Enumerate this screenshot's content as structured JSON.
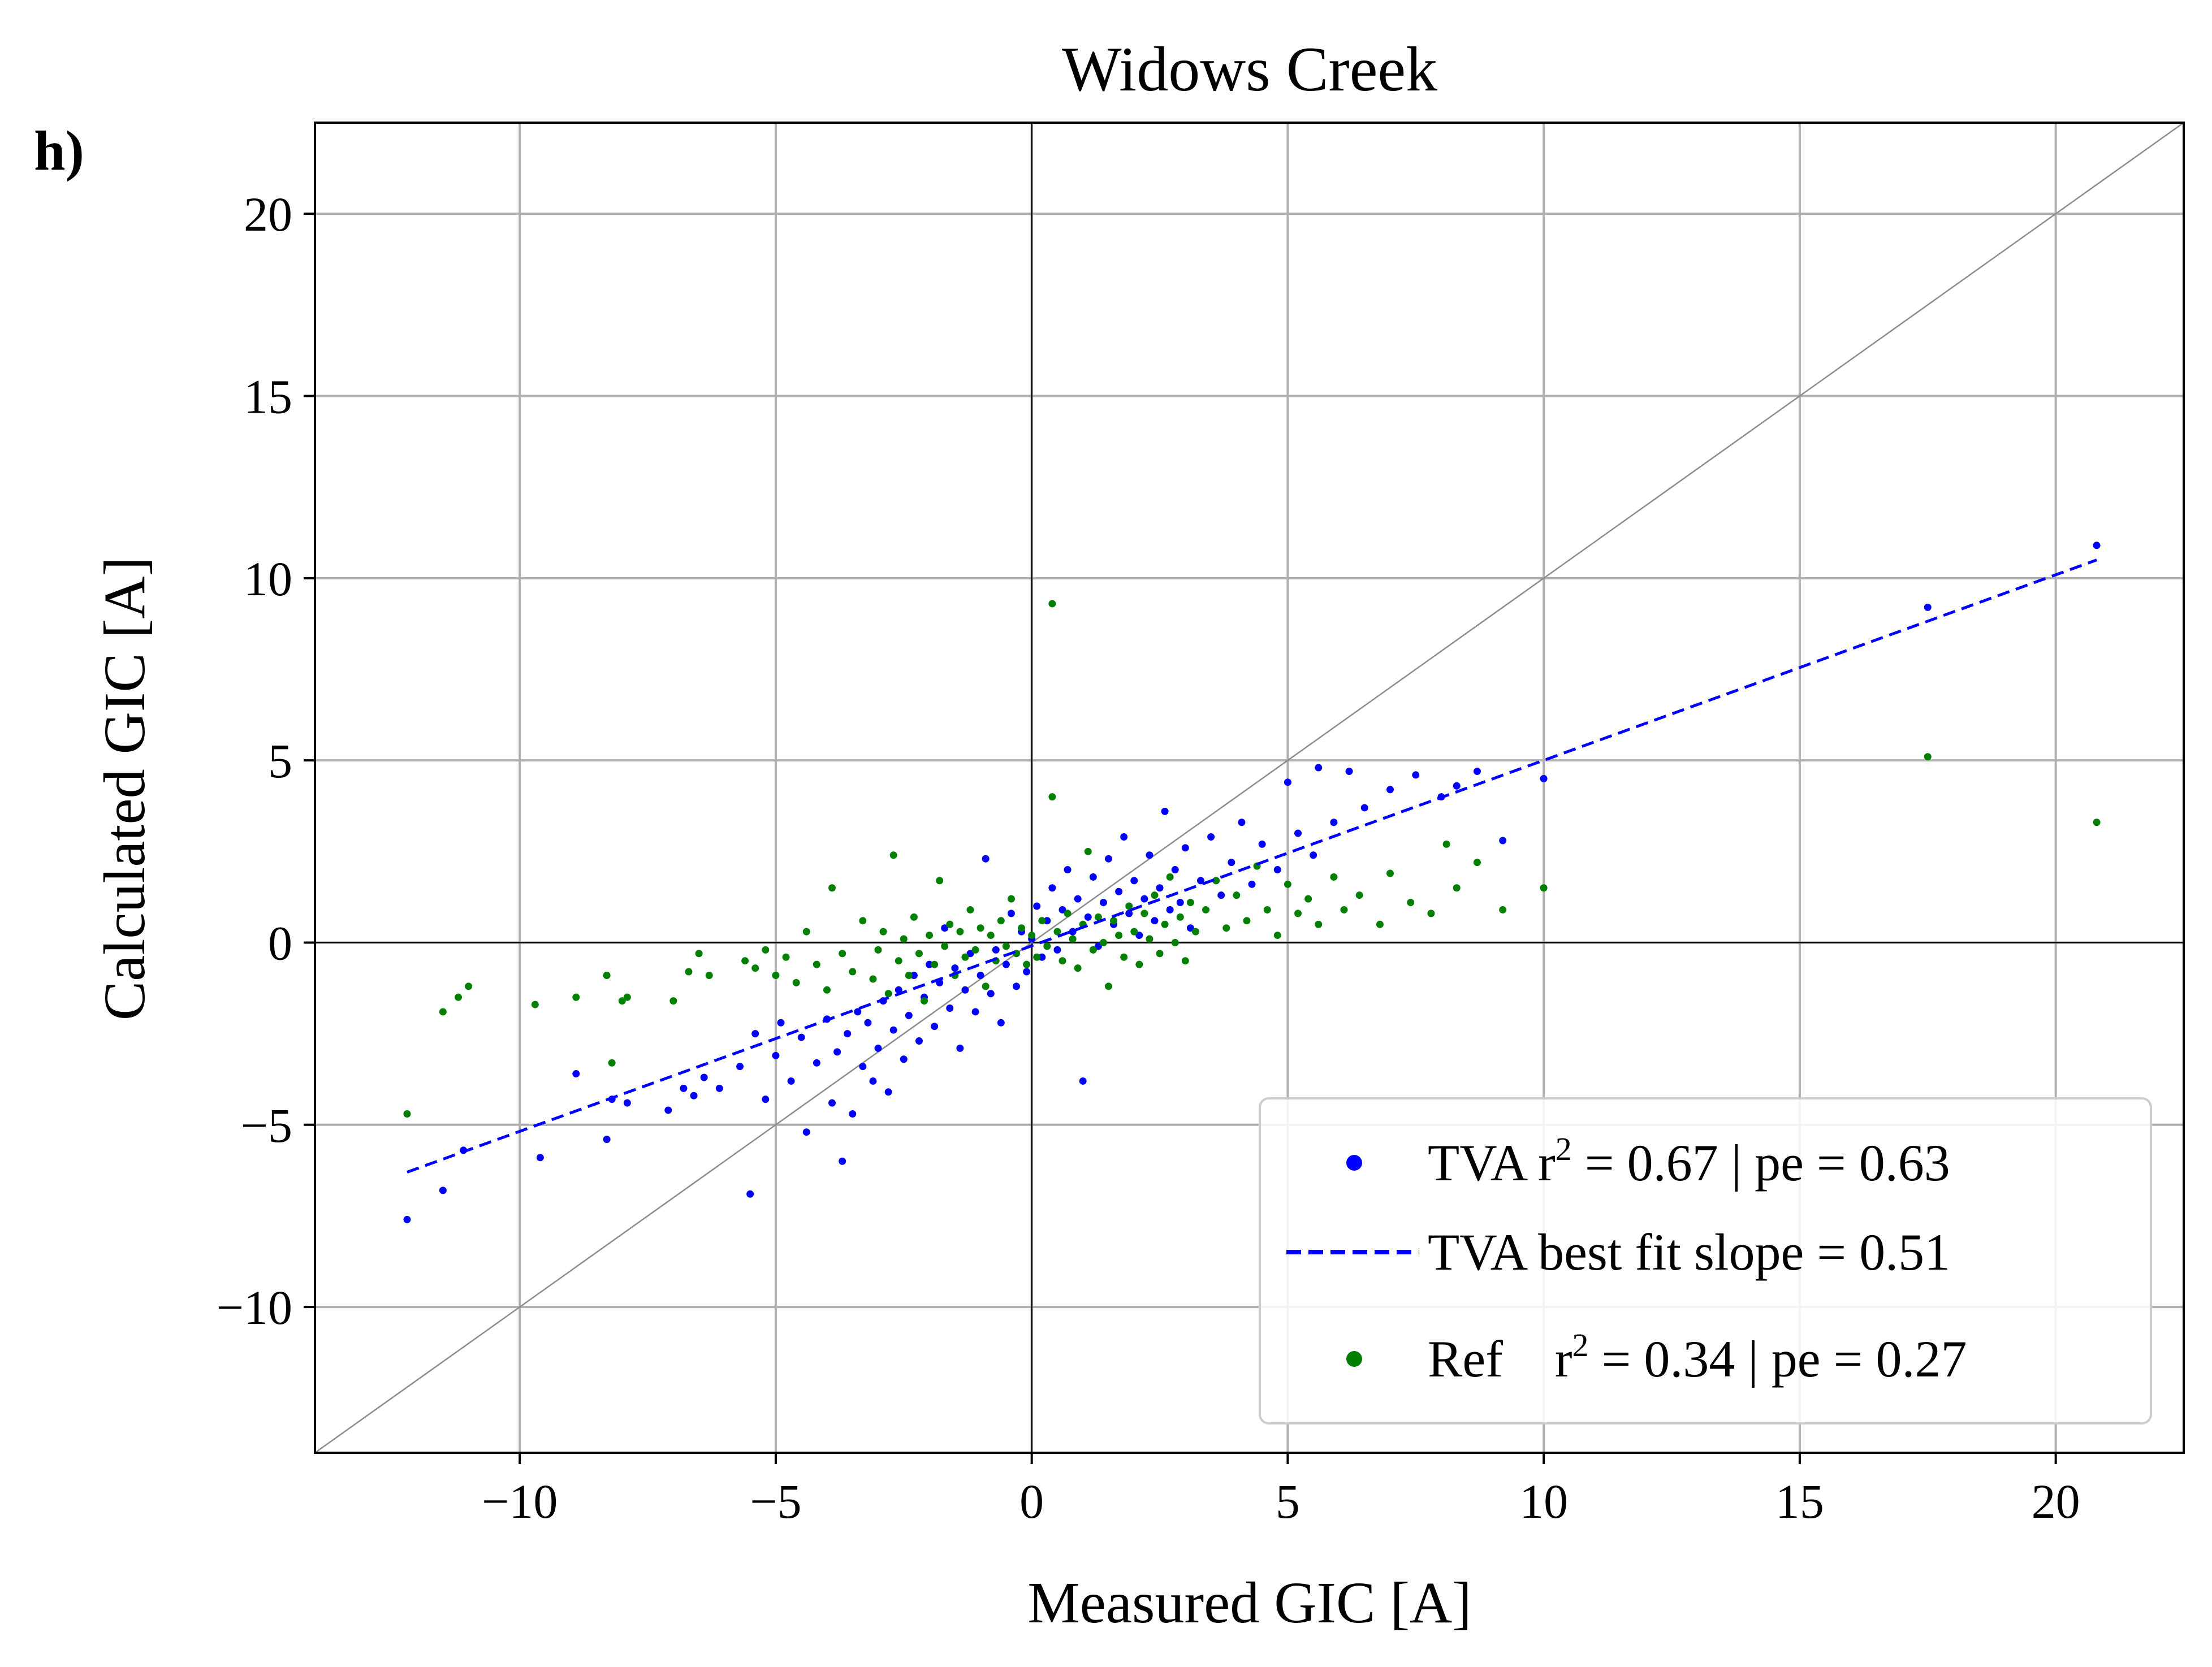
{
  "chart_data": {
    "type": "scatter",
    "panel_label": "h)",
    "title": "Widows Creek",
    "xlabel": "Measured GIC [A]",
    "ylabel": "Calculated GIC [A]",
    "xlim": [
      -14,
      22.5
    ],
    "ylim": [
      -14,
      22.5
    ],
    "xticks": [
      -10,
      -5,
      0,
      5,
      10,
      15,
      20
    ],
    "yticks": [
      -10,
      -5,
      0,
      5,
      10,
      15,
      20
    ],
    "grid": true,
    "legend_position": "lower-right",
    "reference_line": {
      "type": "identity",
      "color": "#8c8c8c"
    },
    "series": [
      {
        "name": "TVA",
        "kind": "scatter",
        "color": "#0000ff",
        "legend_label": "TVA r",
        "legend_sup": "2",
        "legend_stats": " = 0.67 | pe = 0.63",
        "points": [
          [
            -12.2,
            -7.6
          ],
          [
            -11.5,
            -6.8
          ],
          [
            -11.1,
            -5.7
          ],
          [
            -9.6,
            -5.9
          ],
          [
            -8.9,
            -3.6
          ],
          [
            -8.3,
            -5.4
          ],
          [
            -8.2,
            -4.3
          ],
          [
            -7.9,
            -4.4
          ],
          [
            -7.1,
            -4.6
          ],
          [
            -6.8,
            -4.0
          ],
          [
            -6.6,
            -4.2
          ],
          [
            -6.4,
            -3.7
          ],
          [
            -6.1,
            -4.0
          ],
          [
            -5.7,
            -3.4
          ],
          [
            -5.5,
            -6.9
          ],
          [
            -5.4,
            -2.5
          ],
          [
            -5.2,
            -4.3
          ],
          [
            -5.0,
            -3.1
          ],
          [
            -4.9,
            -2.2
          ],
          [
            -4.7,
            -3.8
          ],
          [
            -4.5,
            -2.6
          ],
          [
            -4.4,
            -5.2
          ],
          [
            -4.2,
            -3.3
          ],
          [
            -4.0,
            -2.1
          ],
          [
            -3.9,
            -4.4
          ],
          [
            -3.8,
            -3.0
          ],
          [
            -3.7,
            -6.0
          ],
          [
            -3.6,
            -2.5
          ],
          [
            -3.5,
            -4.7
          ],
          [
            -3.4,
            -1.9
          ],
          [
            -3.3,
            -3.4
          ],
          [
            -3.2,
            -2.2
          ],
          [
            -3.1,
            -3.8
          ],
          [
            -3.0,
            -2.9
          ],
          [
            -2.9,
            -1.6
          ],
          [
            -2.8,
            -4.1
          ],
          [
            -2.7,
            -2.4
          ],
          [
            -2.6,
            -1.3
          ],
          [
            -2.5,
            -3.2
          ],
          [
            -2.4,
            -2.0
          ],
          [
            -2.3,
            -0.9
          ],
          [
            -2.2,
            -2.7
          ],
          [
            -2.1,
            -1.5
          ],
          [
            -2.0,
            -0.6
          ],
          [
            -1.9,
            -2.3
          ],
          [
            -1.8,
            -1.1
          ],
          [
            -1.7,
            0.4
          ],
          [
            -1.6,
            -1.8
          ],
          [
            -1.5,
            -0.7
          ],
          [
            -1.4,
            -2.9
          ],
          [
            -1.3,
            -1.3
          ],
          [
            -1.2,
            -0.3
          ],
          [
            -1.1,
            -1.9
          ],
          [
            -1.0,
            -0.9
          ],
          [
            -0.9,
            2.3
          ],
          [
            -0.8,
            -1.4
          ],
          [
            -0.7,
            -0.2
          ],
          [
            -0.6,
            -2.2
          ],
          [
            -0.5,
            -0.6
          ],
          [
            -0.4,
            0.8
          ],
          [
            -0.3,
            -1.2
          ],
          [
            -0.2,
            0.3
          ],
          [
            -0.1,
            -0.8
          ],
          [
            0.0,
            0.1
          ],
          [
            0.1,
            1.0
          ],
          [
            0.2,
            -0.4
          ],
          [
            0.3,
            0.6
          ],
          [
            0.4,
            1.5
          ],
          [
            0.5,
            -0.2
          ],
          [
            0.6,
            0.9
          ],
          [
            0.7,
            2.0
          ],
          [
            0.8,
            0.3
          ],
          [
            0.9,
            1.2
          ],
          [
            1.0,
            -3.8
          ],
          [
            1.1,
            0.7
          ],
          [
            1.2,
            1.8
          ],
          [
            1.3,
            -0.1
          ],
          [
            1.4,
            1.1
          ],
          [
            1.5,
            2.3
          ],
          [
            1.6,
            0.5
          ],
          [
            1.7,
            1.4
          ],
          [
            1.8,
            2.9
          ],
          [
            1.9,
            0.8
          ],
          [
            2.0,
            1.7
          ],
          [
            2.1,
            0.2
          ],
          [
            2.2,
            1.2
          ],
          [
            2.3,
            2.4
          ],
          [
            2.4,
            0.6
          ],
          [
            2.5,
            1.5
          ],
          [
            2.6,
            3.6
          ],
          [
            2.7,
            0.9
          ],
          [
            2.8,
            2.0
          ],
          [
            2.9,
            1.1
          ],
          [
            3.0,
            2.6
          ],
          [
            3.1,
            0.4
          ],
          [
            3.3,
            1.7
          ],
          [
            3.5,
            2.9
          ],
          [
            3.7,
            1.3
          ],
          [
            3.9,
            2.2
          ],
          [
            4.1,
            3.3
          ],
          [
            4.3,
            1.6
          ],
          [
            4.5,
            2.7
          ],
          [
            4.8,
            2.0
          ],
          [
            5.0,
            4.4
          ],
          [
            5.2,
            3.0
          ],
          [
            5.5,
            2.4
          ],
          [
            5.6,
            4.8
          ],
          [
            5.9,
            3.3
          ],
          [
            6.2,
            4.7
          ],
          [
            6.5,
            3.7
          ],
          [
            7.0,
            4.2
          ],
          [
            7.5,
            4.6
          ],
          [
            8.0,
            4.0
          ],
          [
            8.3,
            4.3
          ],
          [
            8.7,
            4.7
          ],
          [
            9.2,
            2.8
          ],
          [
            10.0,
            4.5
          ],
          [
            17.5,
            9.2
          ],
          [
            20.8,
            10.9
          ]
        ]
      },
      {
        "name": "Ref",
        "kind": "scatter",
        "color": "#008000",
        "legend_label": "Ref    r",
        "legend_sup": "2",
        "legend_stats": " = 0.34 | pe = 0.27",
        "points": [
          [
            -12.2,
            -4.7
          ],
          [
            -11.5,
            -1.9
          ],
          [
            -11.2,
            -1.5
          ],
          [
            -11.0,
            -1.2
          ],
          [
            -9.7,
            -1.7
          ],
          [
            -8.9,
            -1.5
          ],
          [
            -8.3,
            -0.9
          ],
          [
            -8.2,
            -3.3
          ],
          [
            -8.0,
            -1.6
          ],
          [
            -7.9,
            -1.5
          ],
          [
            -7.0,
            -1.6
          ],
          [
            -6.7,
            -0.8
          ],
          [
            -6.5,
            -0.3
          ],
          [
            -6.3,
            -0.9
          ],
          [
            -5.6,
            -0.5
          ],
          [
            -5.4,
            -0.7
          ],
          [
            -5.2,
            -0.2
          ],
          [
            -5.0,
            -0.9
          ],
          [
            -4.8,
            -0.4
          ],
          [
            -4.6,
            -1.1
          ],
          [
            -4.4,
            0.3
          ],
          [
            -4.2,
            -0.6
          ],
          [
            -4.0,
            -1.3
          ],
          [
            -3.9,
            1.5
          ],
          [
            -3.7,
            -0.3
          ],
          [
            -3.5,
            -0.8
          ],
          [
            -3.3,
            0.6
          ],
          [
            -3.1,
            -1.0
          ],
          [
            -3.0,
            -0.2
          ],
          [
            -2.9,
            0.3
          ],
          [
            -2.8,
            -1.4
          ],
          [
            -2.7,
            2.4
          ],
          [
            -2.6,
            -0.5
          ],
          [
            -2.5,
            0.1
          ],
          [
            -2.4,
            -0.9
          ],
          [
            -2.3,
            0.7
          ],
          [
            -2.2,
            -0.3
          ],
          [
            -2.1,
            -1.6
          ],
          [
            -2.0,
            0.2
          ],
          [
            -1.9,
            -0.6
          ],
          [
            -1.8,
            1.7
          ],
          [
            -1.7,
            -0.1
          ],
          [
            -1.6,
            0.5
          ],
          [
            -1.5,
            -0.9
          ],
          [
            -1.4,
            0.3
          ],
          [
            -1.3,
            -0.4
          ],
          [
            -1.2,
            0.9
          ],
          [
            -1.1,
            -0.2
          ],
          [
            -1.0,
            0.4
          ],
          [
            -0.9,
            -1.2
          ],
          [
            -0.8,
            0.2
          ],
          [
            -0.7,
            -0.5
          ],
          [
            -0.6,
            0.6
          ],
          [
            -0.5,
            -0.1
          ],
          [
            -0.4,
            1.2
          ],
          [
            -0.3,
            -0.3
          ],
          [
            -0.2,
            0.4
          ],
          [
            -0.1,
            -0.6
          ],
          [
            0.0,
            0.2
          ],
          [
            0.1,
            -0.4
          ],
          [
            0.2,
            0.6
          ],
          [
            0.3,
            -0.1
          ],
          [
            0.4,
            4.0
          ],
          [
            0.5,
            0.3
          ],
          [
            0.6,
            -0.5
          ],
          [
            0.7,
            0.8
          ],
          [
            0.8,
            0.1
          ],
          [
            0.9,
            -0.7
          ],
          [
            1.0,
            0.5
          ],
          [
            1.1,
            2.5
          ],
          [
            1.2,
            -0.2
          ],
          [
            1.3,
            0.7
          ],
          [
            1.4,
            0.0
          ],
          [
            1.5,
            -1.2
          ],
          [
            1.6,
            0.6
          ],
          [
            1.7,
            0.2
          ],
          [
            1.8,
            -0.4
          ],
          [
            1.9,
            1.0
          ],
          [
            2.0,
            0.3
          ],
          [
            2.1,
            -0.6
          ],
          [
            2.2,
            0.8
          ],
          [
            2.3,
            0.1
          ],
          [
            2.4,
            1.3
          ],
          [
            2.5,
            -0.3
          ],
          [
            2.6,
            0.5
          ],
          [
            2.7,
            1.8
          ],
          [
            2.8,
            0.0
          ],
          [
            2.9,
            0.7
          ],
          [
            3.0,
            -0.5
          ],
          [
            3.1,
            1.1
          ],
          [
            3.2,
            0.3
          ],
          [
            3.4,
            0.9
          ],
          [
            3.6,
            1.7
          ],
          [
            3.8,
            0.4
          ],
          [
            4.0,
            1.3
          ],
          [
            4.2,
            0.6
          ],
          [
            4.4,
            2.1
          ],
          [
            4.6,
            0.9
          ],
          [
            4.8,
            0.2
          ],
          [
            5.0,
            1.6
          ],
          [
            5.2,
            0.8
          ],
          [
            5.4,
            1.2
          ],
          [
            5.6,
            0.5
          ],
          [
            5.9,
            1.8
          ],
          [
            6.1,
            0.9
          ],
          [
            6.4,
            1.3
          ],
          [
            6.8,
            0.5
          ],
          [
            7.0,
            1.9
          ],
          [
            7.4,
            1.1
          ],
          [
            7.8,
            0.8
          ],
          [
            8.1,
            2.7
          ],
          [
            8.3,
            1.5
          ],
          [
            8.7,
            2.2
          ],
          [
            9.2,
            0.9
          ],
          [
            10.0,
            1.5
          ],
          [
            0.4,
            9.3
          ],
          [
            17.5,
            5.1
          ],
          [
            20.8,
            3.3
          ]
        ]
      },
      {
        "name": "TVA best fit",
        "kind": "line",
        "style": "dashed",
        "color": "#0000ff",
        "legend_label": "TVA best fit slope = 0.51",
        "slope": 0.51,
        "x_range": [
          -12.2,
          20.8
        ],
        "y_range": [
          -6.3,
          10.5
        ]
      }
    ]
  }
}
